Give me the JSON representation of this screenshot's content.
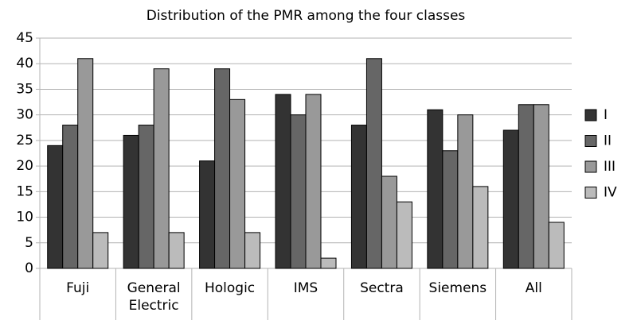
{
  "chart_data": {
    "type": "bar",
    "title": "Distribution of the PMR among the four classes",
    "categories": [
      "Fuji",
      "General Electric",
      "Hologic",
      "IMS",
      "Sectra",
      "Siemens",
      "All"
    ],
    "series": [
      {
        "name": "I",
        "color": "#333333",
        "values": [
          24,
          26,
          21,
          34,
          28,
          31,
          27
        ]
      },
      {
        "name": "II",
        "color": "#666666",
        "values": [
          28,
          28,
          39,
          30,
          41,
          23,
          32
        ]
      },
      {
        "name": "III",
        "color": "#999999",
        "values": [
          41,
          39,
          33,
          34,
          18,
          30,
          32
        ]
      },
      {
        "name": "IV",
        "color": "#bbbbbb",
        "values": [
          7,
          7,
          7,
          2,
          13,
          16,
          9
        ]
      }
    ],
    "ylim": [
      0,
      45
    ],
    "yticks": [
      0,
      5,
      10,
      15,
      20,
      25,
      30,
      35,
      40,
      45
    ],
    "grid": true,
    "legend": "right"
  }
}
